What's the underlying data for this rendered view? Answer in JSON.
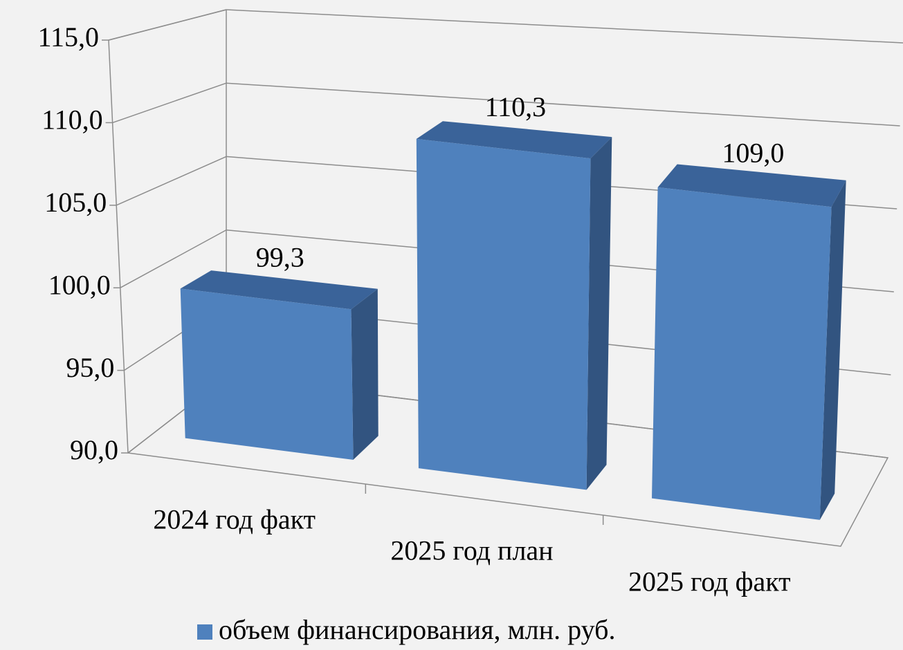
{
  "chart_data": {
    "type": "bar3d",
    "categories": [
      "2024 год факт",
      "2025 год план",
      "2025 год факт"
    ],
    "series": [
      {
        "name": "объем финансирования, млн. руб.",
        "color": "#4f81bd",
        "values": [
          99.3,
          110.3,
          109.0
        ],
        "value_labels": [
          "99,3",
          "110,3",
          "109,0"
        ]
      }
    ],
    "ylim": [
      90,
      115
    ],
    "yticks": [
      {
        "value": 90,
        "label": "90,0"
      },
      {
        "value": 95,
        "label": "95,0"
      },
      {
        "value": 100,
        "label": "100,0"
      },
      {
        "value": 105,
        "label": "105,0"
      },
      {
        "value": 110,
        "label": "110,0"
      },
      {
        "value": 115,
        "label": "115,0"
      }
    ],
    "grid": true,
    "legend": "bottom"
  }
}
